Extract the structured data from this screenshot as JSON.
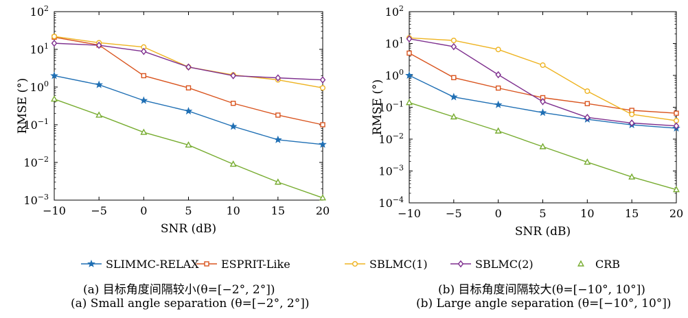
{
  "colors": {
    "SLIMMC-RELAX": "#1f6fb4",
    "ESPRIT-Like": "#d9541e",
    "SBLMC(1)": "#eeb320",
    "SBLMC(2)": "#7e2f8e",
    "CRB": "#77ac30"
  },
  "legend": [
    {
      "name": "SLIMMC-RELAX",
      "marker": "star"
    },
    {
      "name": "ESPRIT-Like",
      "marker": "square"
    },
    {
      "name": "SBLMC(1)",
      "marker": "circle"
    },
    {
      "name": "SBLMC(2)",
      "marker": "diamond"
    },
    {
      "name": "CRB",
      "marker": "triangle"
    }
  ],
  "captions": {
    "a_cn": "(a) 目标角度间隔较小(θ=[−2°, 2°])",
    "a_en": "(a) Small angle separation (θ=[−2°, 2°])",
    "b_cn": "(b) 目标角度间隔较大(θ=[−10°, 10°])",
    "b_en": "(b) Large angle separation (θ=[−10°, 10°])"
  },
  "chart_data": [
    {
      "type": "line",
      "xlabel": "SNR (dB)",
      "ylabel": "RMSE (°)",
      "yscale": "log",
      "x": [
        -10,
        -5,
        0,
        5,
        10,
        15,
        20
      ],
      "xticks": [
        -10,
        -5,
        0,
        5,
        10,
        15,
        20
      ],
      "xlim": [
        -10,
        20
      ],
      "ylim": [
        0.001,
        100
      ],
      "yticks": [
        {
          "value": 0.001,
          "base": "10",
          "exp": "-3"
        },
        {
          "value": 0.01,
          "base": "10",
          "exp": "-2"
        },
        {
          "value": 0.1,
          "base": "10",
          "exp": "-1"
        },
        {
          "value": 1,
          "base": "10",
          "exp": "0"
        },
        {
          "value": 10,
          "base": "10",
          "exp": "1"
        },
        {
          "value": 100,
          "base": "10",
          "exp": "2"
        }
      ],
      "grid": false,
      "series": [
        {
          "name": "SLIMMC-RELAX",
          "values": [
            2.0,
            1.15,
            0.44,
            0.23,
            0.09,
            0.04,
            0.03
          ]
        },
        {
          "name": "ESPRIT-Like",
          "values": [
            21,
            13,
            2.0,
            0.95,
            0.37,
            0.18,
            0.1
          ]
        },
        {
          "name": "SBLMC(1)",
          "values": [
            22,
            15,
            11.5,
            3.4,
            2.1,
            1.55,
            0.95
          ]
        },
        {
          "name": "SBLMC(2)",
          "values": [
            14.5,
            12.8,
            8.8,
            3.4,
            2.0,
            1.75,
            1.55
          ]
        },
        {
          "name": "CRB",
          "values": [
            0.48,
            0.18,
            0.063,
            0.029,
            0.009,
            0.003,
            0.00115
          ]
        }
      ]
    },
    {
      "type": "line",
      "xlabel": "SNR (dB)",
      "ylabel": "RMSE (°)",
      "yscale": "log",
      "x": [
        -10,
        -5,
        0,
        5,
        10,
        15,
        20
      ],
      "xticks": [
        -10,
        -5,
        0,
        5,
        10,
        15,
        20
      ],
      "xlim": [
        -10,
        20
      ],
      "ylim": [
        0.0001,
        100
      ],
      "yticks": [
        {
          "value": 0.0001,
          "base": "10",
          "exp": "-4"
        },
        {
          "value": 0.001,
          "base": "10",
          "exp": "-3"
        },
        {
          "value": 0.01,
          "base": "10",
          "exp": "-2"
        },
        {
          "value": 0.1,
          "base": "10",
          "exp": "-1"
        },
        {
          "value": 1,
          "base": "10",
          "exp": "0"
        },
        {
          "value": 10,
          "base": "10",
          "exp": "1"
        },
        {
          "value": 100,
          "base": "10",
          "exp": "2"
        }
      ],
      "grid": false,
      "series": [
        {
          "name": "SLIMMC-RELAX",
          "values": [
            1.0,
            0.21,
            0.12,
            0.068,
            0.042,
            0.028,
            0.022
          ]
        },
        {
          "name": "ESPRIT-Like",
          "values": [
            5.0,
            0.85,
            0.4,
            0.2,
            0.13,
            0.08,
            0.065
          ]
        },
        {
          "name": "SBLMC(1)",
          "values": [
            15,
            12.5,
            6.5,
            2.1,
            0.32,
            0.06,
            0.038
          ]
        },
        {
          "name": "SBLMC(2)",
          "values": [
            14,
            8.0,
            1.05,
            0.15,
            0.048,
            0.032,
            0.026
          ]
        },
        {
          "name": "CRB",
          "values": [
            0.14,
            0.05,
            0.018,
            0.0058,
            0.0019,
            0.00065,
            0.00026
          ]
        }
      ]
    }
  ]
}
